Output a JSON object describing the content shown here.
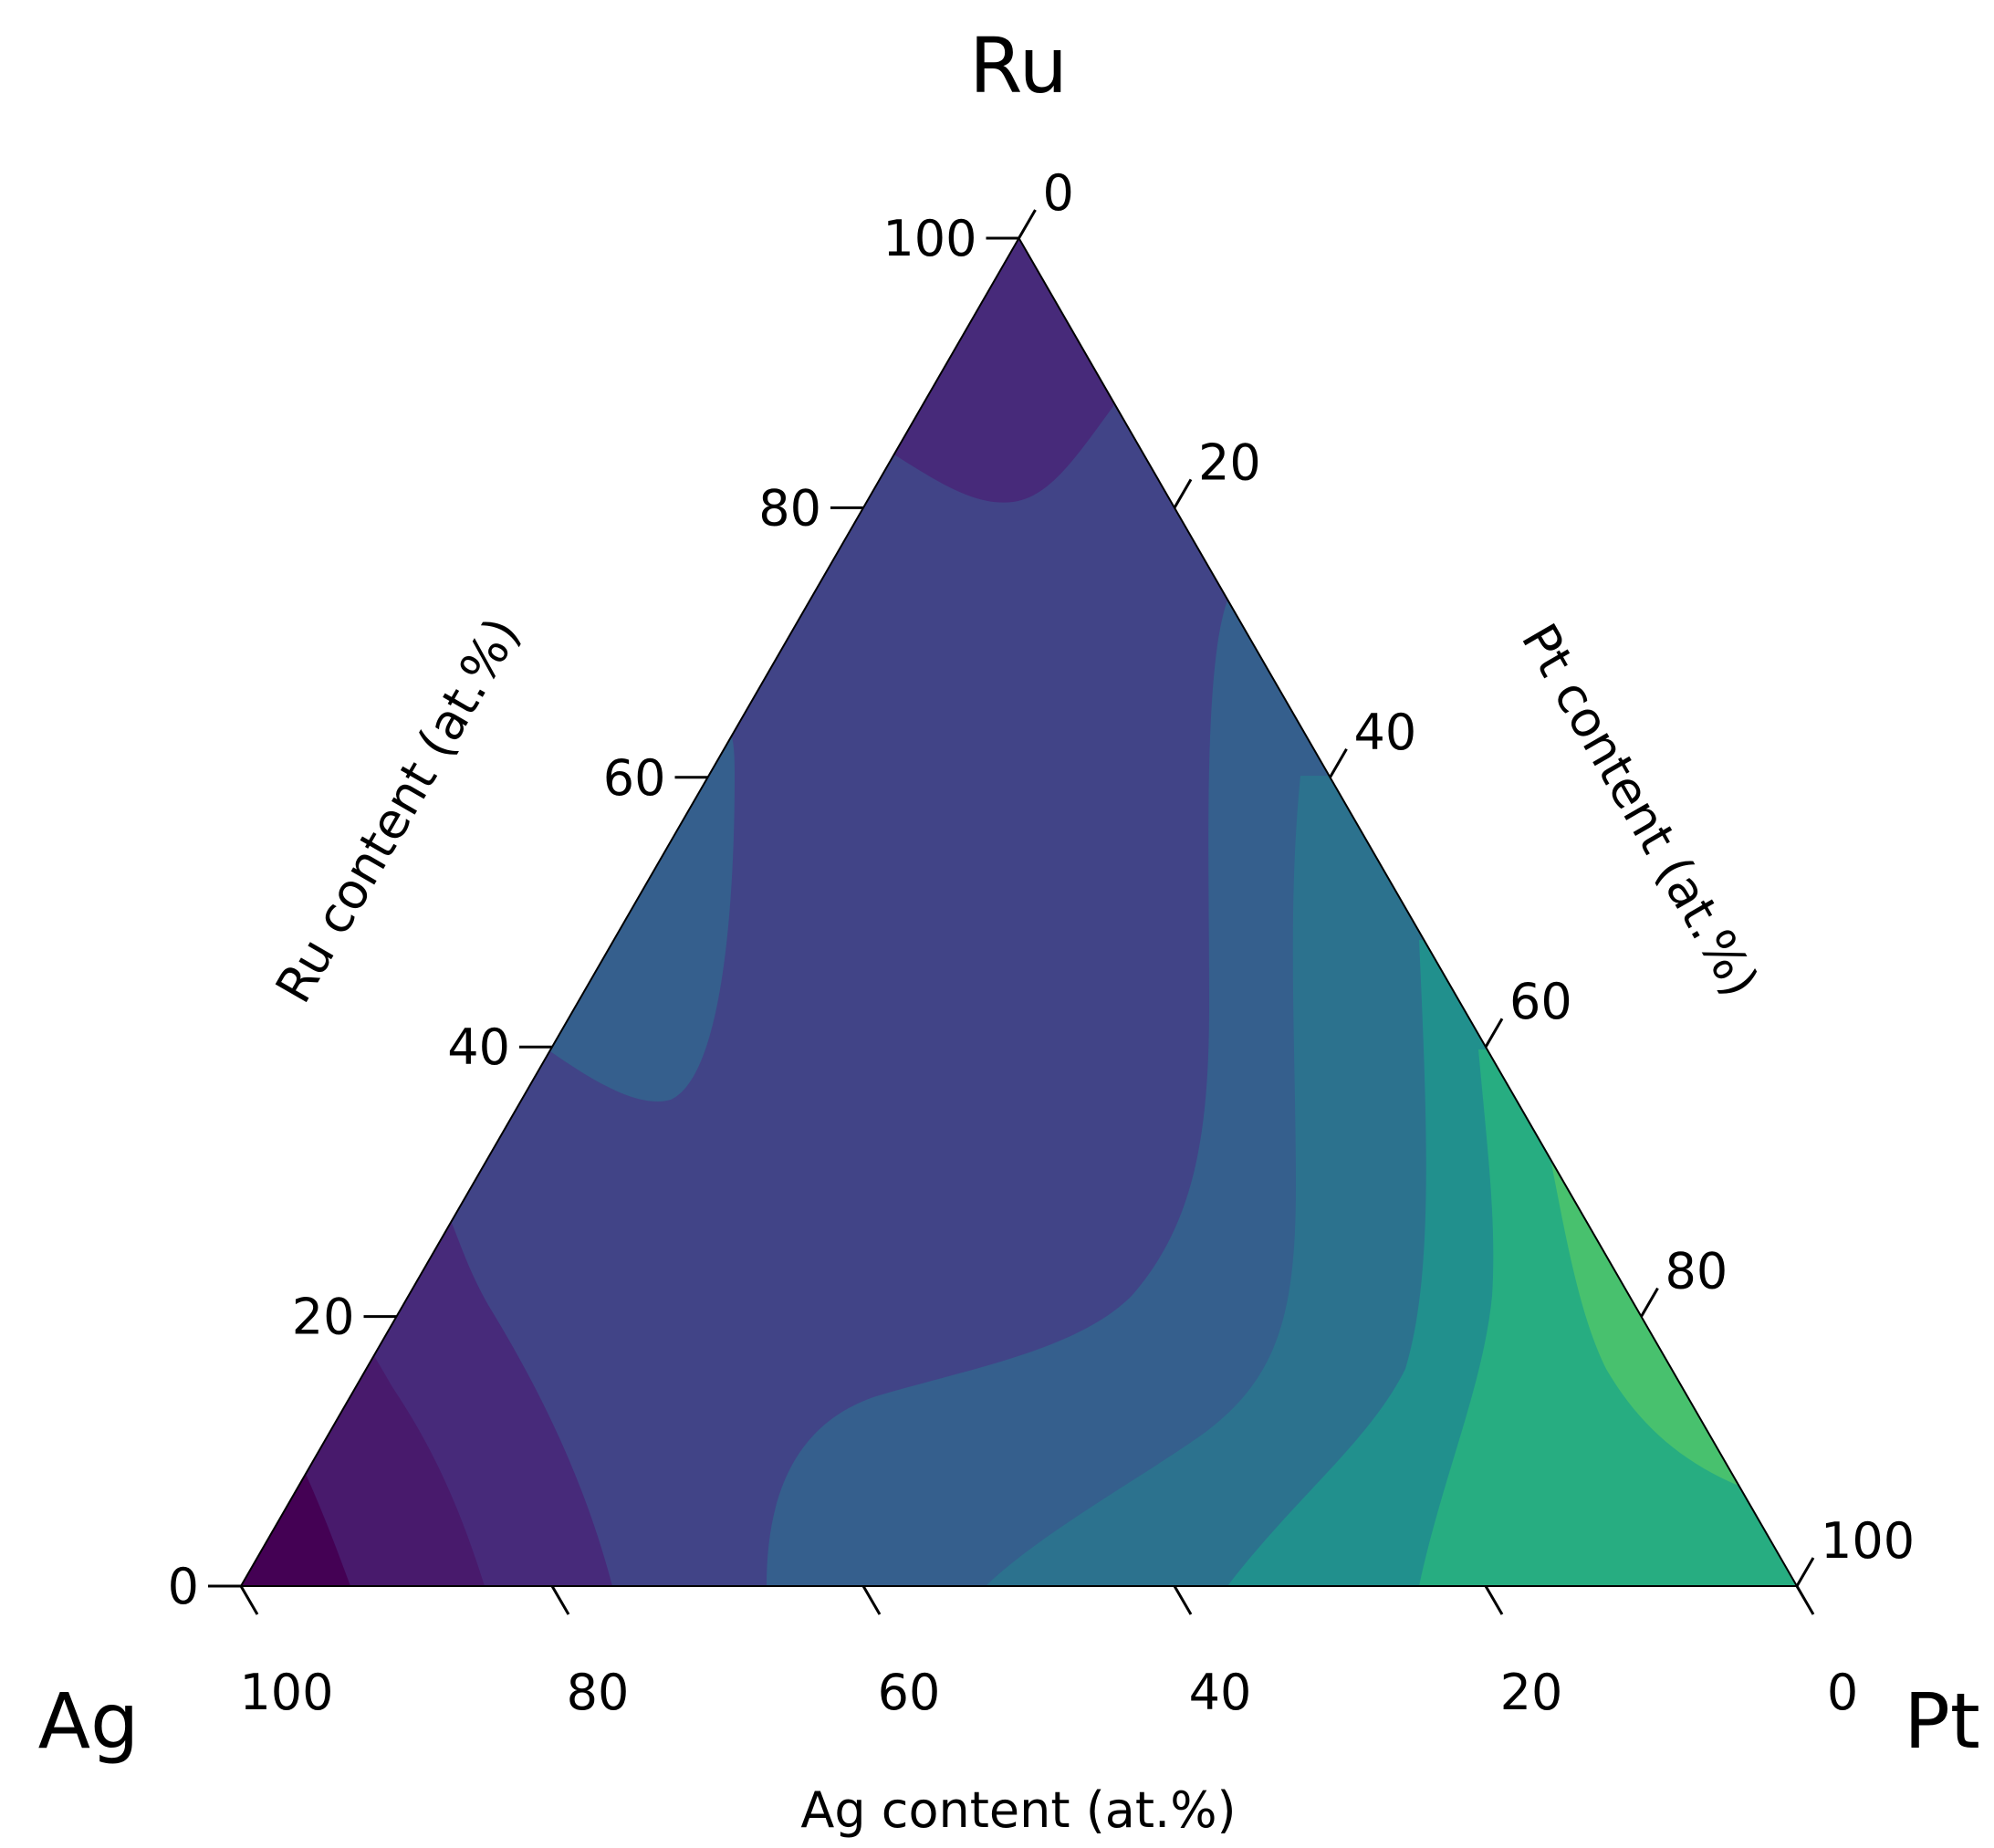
{
  "chart_data": {
    "type": "ternary-contour",
    "corners": {
      "top": "Ru",
      "left": "Ag",
      "right": "Pt"
    },
    "axis_titles": {
      "left": "Ru content (at.%)",
      "right": "Pt content (at.%)",
      "bottom": "Ag content (at.%)"
    },
    "ticks": [
      "0",
      "20",
      "40",
      "60",
      "80",
      "100"
    ],
    "colormap": "viridis",
    "levels": [
      {
        "level": 0,
        "color": "#440154"
      },
      {
        "level": 1,
        "color": "#481a6c"
      },
      {
        "level": 2,
        "color": "#472a7a"
      },
      {
        "level": 3,
        "color": "#414487"
      },
      {
        "level": 4,
        "color": "#355f8d"
      },
      {
        "level": 5,
        "color": "#2c728e"
      },
      {
        "level": 6,
        "color": "#21908d"
      },
      {
        "level": 7,
        "color": "#27ad81"
      },
      {
        "level": 8,
        "color": "#48c16e"
      }
    ]
  }
}
